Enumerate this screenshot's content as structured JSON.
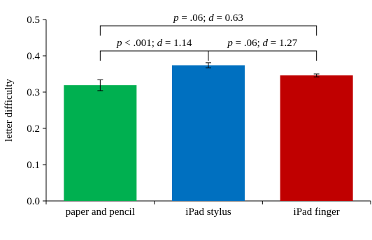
{
  "chart_data": {
    "type": "bar",
    "title": "",
    "xlabel": "",
    "ylabel": "letter difficulty",
    "ylim": [
      0,
      0.5
    ],
    "yticks": [
      0.0,
      0.1,
      0.2,
      0.3,
      0.4,
      0.5
    ],
    "ytick_labels": [
      "0.0",
      "0.1",
      "0.2",
      "0.3",
      "0.4",
      "0.5"
    ],
    "categories": [
      "paper and pencil",
      "iPad stylus",
      "iPad finger"
    ],
    "values": [
      0.319,
      0.374,
      0.346
    ],
    "errors": [
      0.015,
      0.007,
      0.004
    ],
    "colors": [
      "#00B050",
      "#0070C0",
      "#C00000"
    ],
    "grid": false,
    "legend": false,
    "comparisons": [
      {
        "from": 0,
        "to": 1,
        "level": 1,
        "p_sym": "p",
        "p_text": " < .001; ",
        "d_sym": "d",
        "d_text": " = 1.14"
      },
      {
        "from": 1,
        "to": 2,
        "level": 1,
        "p_sym": "p",
        "p_text": " = .06; ",
        "d_sym": "d",
        "d_text": " = 1.27"
      },
      {
        "from": 0,
        "to": 2,
        "level": 2,
        "p_sym": "p",
        "p_text": " = .06; ",
        "d_sym": "d",
        "d_text": " = 0.63"
      }
    ]
  }
}
